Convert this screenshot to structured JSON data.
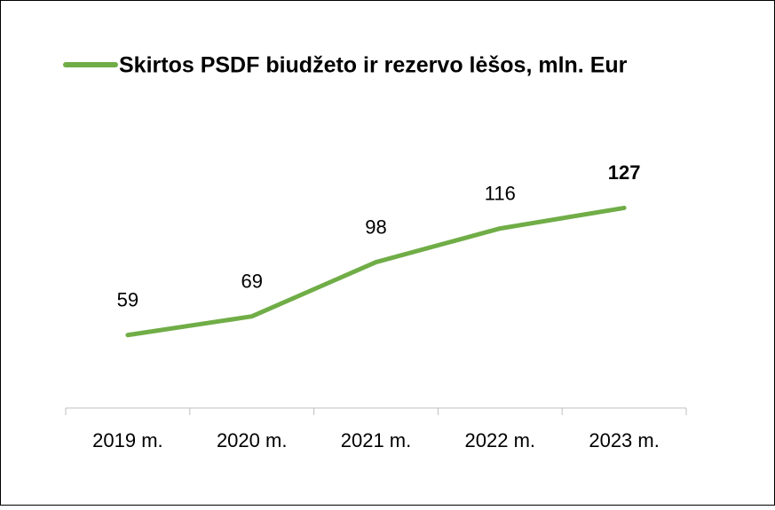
{
  "chart_data": {
    "type": "line",
    "categories": [
      "2019 m.",
      "2020 m.",
      "2021 m.",
      "2022 m.",
      "2023 m."
    ],
    "series": [
      {
        "name": "Skirtos PSDF biudžeto ir rezervo lėšos, mln. Eur",
        "color": "#70ad47",
        "values": [
          59,
          69,
          98,
          116,
          127
        ]
      }
    ],
    "bold_labels": [
      false,
      false,
      false,
      false,
      true
    ],
    "ylim": [
      20,
      140
    ],
    "legend": "top"
  }
}
